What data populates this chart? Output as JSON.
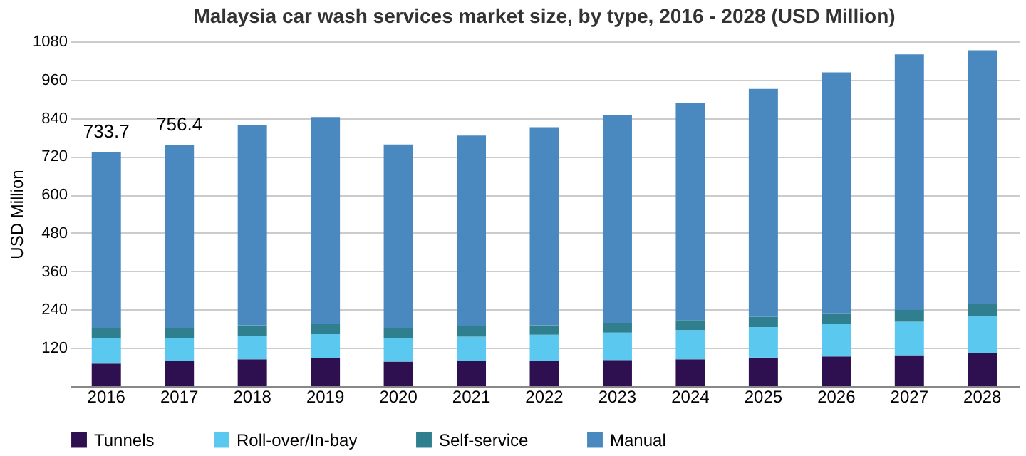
{
  "chart_data": {
    "type": "bar",
    "title": "Malaysia car wash services market size, by type, 2016 - 2028 (USD Million)",
    "ylabel": "USD Million",
    "categories": [
      "2016",
      "2017",
      "2018",
      "2019",
      "2020",
      "2021",
      "2022",
      "2023",
      "2024",
      "2025",
      "2026",
      "2027",
      "2028"
    ],
    "stacked": true,
    "series": [
      {
        "name": "Tunnels",
        "color": "#2e0f4f",
        "values": [
          71,
          78,
          84,
          88,
          77,
          78,
          78,
          82,
          84,
          90,
          93,
          97,
          103
        ]
      },
      {
        "name": "Roll-over/In-bay",
        "color": "#5bc8f0",
        "values": [
          80,
          73,
          73,
          75,
          74,
          77,
          83,
          86,
          92,
          95,
          101,
          105,
          116
        ]
      },
      {
        "name": "Self-service",
        "color": "#2f7f8e",
        "values": [
          30,
          30,
          34,
          31,
          30,
          34,
          30,
          30,
          31,
          32,
          34,
          37,
          39
        ]
      },
      {
        "name": "Manual",
        "color": "#4a89c0",
        "values": [
          552.7,
          575.4,
          626,
          649,
          576,
          596,
          620,
          652,
          681,
          714,
          755,
          800,
          794
        ]
      }
    ],
    "totals": [
      "733.7",
      "756.4",
      null,
      null,
      null,
      null,
      null,
      null,
      null,
      null,
      null,
      null,
      null
    ],
    "ylim": [
      0,
      1080
    ],
    "yticks": [
      120,
      240,
      360,
      480,
      600,
      720,
      840,
      960,
      1080
    ],
    "grid": "y",
    "legend": "bottom"
  }
}
